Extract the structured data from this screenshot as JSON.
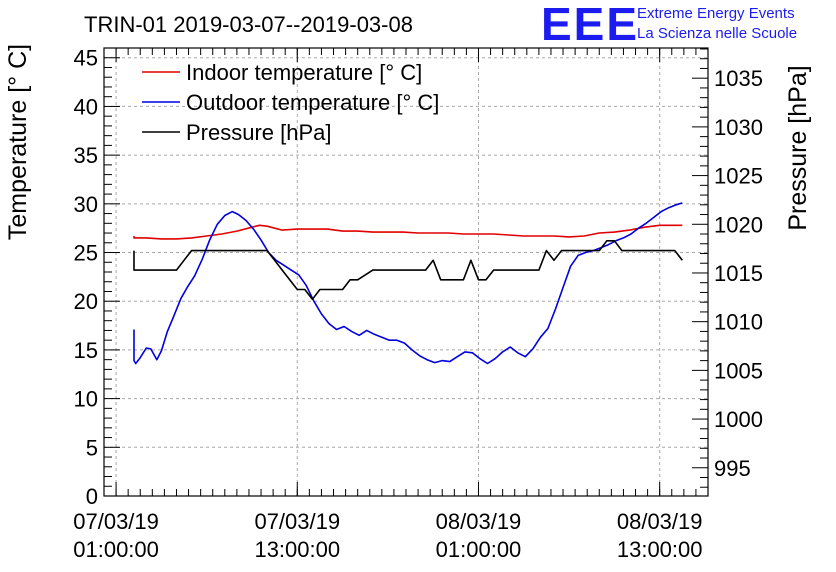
{
  "chart_data": {
    "type": "line",
    "title": "TRIN-01 2019-03-07--2019-03-08",
    "ylabel": "Temperature [° C]",
    "y2label": "Pressure [hPa]",
    "ylim": [
      0,
      46
    ],
    "y2lim": [
      992.1,
      1038.1
    ],
    "xlim": [
      -0.8,
      39.2
    ],
    "grid": true,
    "legend": "top-left",
    "x_ticks": [
      {
        "x": 0,
        "date": "07/03/19",
        "time": "01:00:00"
      },
      {
        "x": 12,
        "date": "07/03/19",
        "time": "13:00:00"
      },
      {
        "x": 24,
        "date": "08/03/19",
        "time": "01:00:00"
      },
      {
        "x": 36,
        "date": "08/03/19",
        "time": "13:00:00"
      }
    ],
    "y_ticks": [
      0,
      5,
      10,
      15,
      20,
      25,
      30,
      35,
      40,
      45
    ],
    "y2_ticks": [
      995,
      1000,
      1005,
      1010,
      1015,
      1020,
      1025,
      1030,
      1035
    ],
    "series": [
      {
        "name": "Indoor temperature [° C]",
        "axis": "left",
        "color": "#e00000",
        "x": [
          -3,
          -2,
          -1,
          0,
          1,
          2,
          3,
          4,
          5,
          6,
          7,
          8,
          9,
          9.5,
          10,
          11,
          12,
          13,
          14,
          15,
          16,
          17,
          18,
          19,
          20,
          21,
          22,
          23,
          24,
          25,
          26,
          27,
          28,
          29,
          30,
          31,
          32,
          33,
          34,
          35,
          36,
          37,
          37.5
        ],
        "y": [
          26.7,
          26.7,
          26.6,
          26.6,
          26.5,
          26.5,
          26.4,
          26.4,
          26.5,
          26.7,
          26.9,
          27.2,
          27.6,
          27.8,
          27.7,
          27.3,
          27.4,
          27.4,
          27.4,
          27.2,
          27.2,
          27.1,
          27.1,
          27.1,
          27.0,
          27.0,
          27.0,
          26.9,
          26.9,
          26.9,
          26.8,
          26.7,
          26.7,
          26.7,
          26.6,
          26.7,
          27.0,
          27.1,
          27.3,
          27.6,
          27.8,
          27.8,
          27.8
        ]
      },
      {
        "name": "Outdoor temperature [° C]",
        "axis": "left",
        "color": "#0000e0",
        "x": [
          -3,
          -2.6,
          -2.3,
          -2,
          -1.7,
          -1.4,
          -1,
          -0.6,
          -0.3,
          0,
          0.3,
          0.7,
          1,
          1.3,
          1.6,
          2,
          2.3,
          2.7,
          3,
          3.4,
          3.8,
          4.3,
          4.7,
          5.2,
          5.7,
          6.2,
          6.7,
          7.2,
          7.7,
          8.1,
          8.6,
          9.1,
          9.6,
          10.1,
          10.6,
          11.1,
          11.6,
          12.1,
          12.6,
          13.1,
          13.6,
          14.1,
          14.6,
          15.1,
          15.6,
          16.1,
          16.6,
          17.1,
          17.6,
          18.1,
          18.6,
          19.1,
          19.6,
          20.1,
          20.6,
          21.1,
          21.6,
          22.1,
          22.6,
          23.1,
          23.6,
          24.1,
          24.6,
          25.1,
          25.6,
          26.1,
          26.6,
          27.1,
          27.6,
          28.1,
          28.6,
          29.1,
          29.6,
          30.1,
          30.6,
          31.1,
          31.6,
          32.1,
          32.6,
          33.1,
          33.6,
          34.1,
          34.6,
          35.1,
          35.6,
          36.1,
          36.6,
          37.1,
          37.5
        ],
        "y": [
          17.1,
          16.3,
          15.2,
          13.9,
          14.4,
          15.4,
          15.6,
          15.3,
          14.7,
          15.0,
          15.2,
          14.9,
          13.9,
          13.6,
          14.2,
          15.2,
          15.1,
          14.0,
          14.9,
          16.9,
          18.4,
          20.3,
          21.4,
          22.6,
          24.3,
          26.3,
          27.9,
          28.8,
          29.2,
          28.9,
          28.3,
          27.4,
          26.3,
          25.0,
          24.2,
          23.7,
          23.2,
          22.7,
          21.6,
          20.0,
          18.7,
          17.7,
          17.1,
          17.4,
          16.9,
          16.5,
          17.0,
          16.6,
          16.3,
          16.0,
          16.0,
          15.7,
          15.0,
          14.4,
          14.0,
          13.7,
          13.9,
          13.8,
          14.3,
          14.8,
          14.7,
          14.1,
          13.6,
          14.1,
          14.8,
          15.3,
          14.7,
          14.3,
          15.1,
          16.3,
          17.2,
          19.2,
          21.4,
          23.6,
          24.7,
          25.0,
          25.2,
          25.5,
          25.8,
          26.2,
          26.5,
          26.9,
          27.5,
          28.0,
          28.6,
          29.2,
          29.6,
          29.9,
          30.1
        ]
      },
      {
        "name": "Pressure [hPa]",
        "axis": "right",
        "color": "#000000",
        "x": [
          -3,
          -2,
          -1.5,
          -1,
          -0.5,
          0,
          0.5,
          1,
          1.5,
          2,
          3,
          4,
          4.5,
          5,
          6,
          7,
          8,
          9,
          10,
          10.5,
          11,
          11.5,
          12,
          12.5,
          13,
          13.5,
          14,
          14.5,
          15,
          15.5,
          16,
          17,
          18,
          19,
          20,
          20.5,
          21,
          21.5,
          22,
          22.5,
          23,
          23.5,
          24,
          24.5,
          25,
          26,
          27,
          28,
          28.5,
          29,
          29.5,
          30,
          31,
          32,
          32.5,
          33,
          33.5,
          34,
          35,
          36,
          37,
          37.5
        ],
        "y": [
          1017.3,
          1017.3,
          1016.3,
          1016.3,
          1016.3,
          1016.3,
          1015.3,
          1015.3,
          1015.3,
          1015.3,
          1015.3,
          1015.3,
          1016.3,
          1017.3,
          1017.3,
          1017.3,
          1017.3,
          1017.3,
          1017.3,
          1016.3,
          1015.3,
          1014.3,
          1013.3,
          1013.3,
          1012.3,
          1013.3,
          1013.3,
          1013.3,
          1013.3,
          1014.3,
          1014.3,
          1015.3,
          1015.3,
          1015.3,
          1015.3,
          1015.3,
          1016.3,
          1014.3,
          1014.3,
          1014.3,
          1014.3,
          1016.3,
          1014.3,
          1014.3,
          1015.3,
          1015.3,
          1015.3,
          1015.3,
          1017.3,
          1016.3,
          1017.3,
          1017.3,
          1017.3,
          1017.3,
          1018.3,
          1018.3,
          1017.3,
          1017.3,
          1017.3,
          1017.3,
          1017.3,
          1016.3
        ]
      }
    ]
  },
  "logo": {
    "mark": "EEE",
    "line1": "Extreme Energy Events",
    "line2": "La Scienza nelle Scuole"
  }
}
